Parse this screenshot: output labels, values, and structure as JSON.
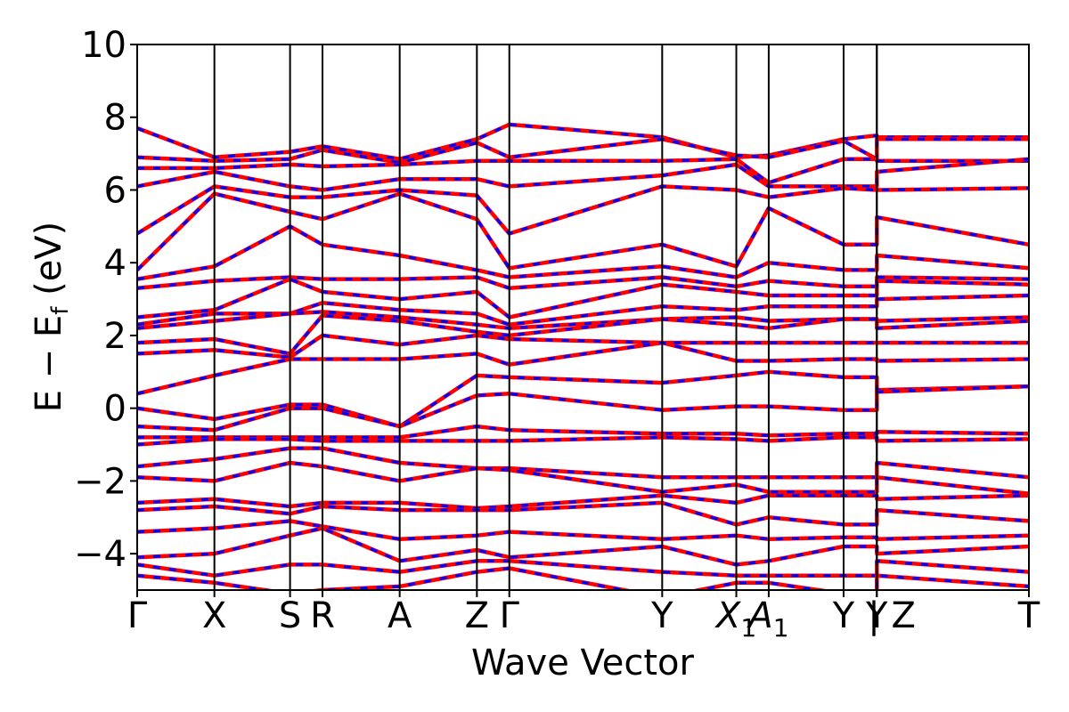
{
  "chart_data": {
    "type": "line",
    "xlabel": "Wave Vector",
    "ylabel_parts": {
      "main": "E − E",
      "sub": "f",
      "unit": " (eV)"
    },
    "ylim": [
      -5,
      10
    ],
    "yticks": [
      -4,
      -2,
      0,
      2,
      4,
      6,
      8,
      10
    ],
    "ytick_labels": [
      "−4",
      "−2",
      "0",
      "2",
      "4",
      "6",
      "8",
      "10"
    ],
    "kpoint_labels": [
      "Γ",
      "X",
      "S",
      "R",
      "A",
      "Z",
      "Γ",
      "Y",
      "X",
      "A",
      "Y",
      "Y",
      "| Z",
      "T"
    ],
    "kpoint_subscripts": [
      "",
      "",
      "",
      "",
      "",
      "",
      "",
      "",
      "1",
      "1",
      "",
      "",
      "",
      ""
    ],
    "kpoints": [
      0,
      1.0,
      1.98,
      2.4,
      3.4,
      4.4,
      4.82,
      6.8,
      7.76,
      8.18,
      9.15,
      9.58,
      9.58,
      11.55
    ],
    "legend": "none",
    "grid": false,
    "colors": {
      "spin_up": "#ff0000",
      "spin_down": "#0000ff",
      "kpath_lines": "#000000"
    },
    "series": [
      {
        "values": [
          7.7,
          6.9,
          7.05,
          7.2,
          6.85,
          7.4,
          7.8,
          7.45,
          6.9,
          6.95,
          7.4,
          7.5,
          7.45,
          7.45
        ]
      },
      {
        "values": [
          6.9,
          6.8,
          6.85,
          7.1,
          6.75,
          7.3,
          6.9,
          7.4,
          6.95,
          6.9,
          7.35,
          6.85,
          7.4,
          7.4
        ]
      },
      {
        "values": [
          6.6,
          6.6,
          6.7,
          6.65,
          6.7,
          6.8,
          6.8,
          6.8,
          6.85,
          6.2,
          6.85,
          6.85,
          6.8,
          6.8
        ]
      },
      {
        "values": [
          6.1,
          6.5,
          6.1,
          6.0,
          6.3,
          6.3,
          6.1,
          6.4,
          6.7,
          6.1,
          6.1,
          6.1,
          6.5,
          6.85
        ]
      },
      {
        "values": [
          4.8,
          6.1,
          5.8,
          5.8,
          6.0,
          5.85,
          4.8,
          6.1,
          6.0,
          5.8,
          6.05,
          6.0,
          6.0,
          6.05
        ]
      },
      {
        "values": [
          3.8,
          5.9,
          5.4,
          5.2,
          5.9,
          5.2,
          3.85,
          4.5,
          3.9,
          5.5,
          4.5,
          4.5,
          5.25,
          4.5
        ]
      },
      {
        "values": [
          3.55,
          3.9,
          5.0,
          4.5,
          4.2,
          3.8,
          3.6,
          3.9,
          3.6,
          4.0,
          3.8,
          3.8,
          4.2,
          3.85
        ]
      },
      {
        "values": [
          3.3,
          3.5,
          3.6,
          3.55,
          3.55,
          3.6,
          3.3,
          3.6,
          3.35,
          3.5,
          3.35,
          3.35,
          3.6,
          3.55
        ]
      },
      {
        "values": [
          2.5,
          2.7,
          3.55,
          3.2,
          3.0,
          3.2,
          2.5,
          3.4,
          3.2,
          3.1,
          3.1,
          3.1,
          3.5,
          3.4
        ]
      },
      {
        "values": [
          2.3,
          2.6,
          2.6,
          2.9,
          2.7,
          2.6,
          2.3,
          2.8,
          2.7,
          2.8,
          2.8,
          2.8,
          3.0,
          3.1
        ]
      },
      {
        "values": [
          2.2,
          2.4,
          2.6,
          2.65,
          2.5,
          2.3,
          2.2,
          2.45,
          2.5,
          2.4,
          2.45,
          2.45,
          2.4,
          2.5
        ]
      },
      {
        "values": [
          1.8,
          1.9,
          1.5,
          2.55,
          2.4,
          2.1,
          2.0,
          2.45,
          2.3,
          2.2,
          2.45,
          2.45,
          2.2,
          2.4
        ]
      },
      {
        "values": [
          1.5,
          1.6,
          1.4,
          2.0,
          1.75,
          2.0,
          1.9,
          1.8,
          1.8,
          1.8,
          1.8,
          1.8,
          1.8,
          1.8
        ]
      },
      {
        "values": [
          0.4,
          0.9,
          1.35,
          1.35,
          1.35,
          1.5,
          1.2,
          1.8,
          1.3,
          1.3,
          1.35,
          1.35,
          1.3,
          1.35
        ]
      },
      {
        "values": [
          0.0,
          -0.3,
          0.1,
          0.1,
          -0.5,
          0.9,
          0.85,
          0.7,
          0.9,
          1.0,
          0.85,
          0.85,
          0.5,
          0.6
        ]
      },
      {
        "values": [
          -0.5,
          -0.6,
          0.0,
          0.0,
          -0.5,
          0.35,
          0.4,
          -0.05,
          0.05,
          0.05,
          -0.05,
          -0.05,
          0.45,
          0.6
        ]
      },
      {
        "values": [
          -0.8,
          -0.8,
          -0.8,
          -0.8,
          -0.8,
          -0.5,
          -0.6,
          -0.7,
          -0.7,
          -0.75,
          -0.7,
          -0.7,
          -0.65,
          -0.7
        ]
      },
      {
        "values": [
          -1.0,
          -0.85,
          -0.85,
          -0.9,
          -0.9,
          -0.9,
          -0.9,
          -0.8,
          -0.85,
          -0.9,
          -0.8,
          -0.8,
          -0.9,
          -0.85
        ]
      },
      {
        "values": [
          -1.6,
          -1.4,
          -1.1,
          -1.1,
          -1.5,
          -1.65,
          -1.65,
          -1.9,
          -1.9,
          -1.9,
          -1.9,
          -1.9,
          -1.5,
          -1.9
        ]
      },
      {
        "values": [
          -1.9,
          -2.0,
          -1.5,
          -1.6,
          -2.0,
          -1.65,
          -1.7,
          -2.3,
          -2.1,
          -2.3,
          -2.3,
          -2.3,
          -1.9,
          -2.35
        ]
      },
      {
        "values": [
          -2.6,
          -2.5,
          -2.7,
          -2.6,
          -2.6,
          -2.75,
          -2.7,
          -2.4,
          -2.6,
          -2.4,
          -2.4,
          -2.4,
          -2.5,
          -2.4
        ]
      },
      {
        "values": [
          -2.8,
          -2.7,
          -2.9,
          -2.7,
          -2.8,
          -2.8,
          -2.8,
          -2.6,
          -3.2,
          -3.0,
          -3.2,
          -3.2,
          -2.8,
          -3.1
        ]
      },
      {
        "values": [
          -3.4,
          -3.3,
          -3.1,
          -3.25,
          -3.6,
          -3.5,
          -3.4,
          -3.6,
          -3.5,
          -3.6,
          -3.55,
          -3.55,
          -3.6,
          -3.5
        ]
      },
      {
        "values": [
          -4.1,
          -4.0,
          -3.5,
          -3.3,
          -4.2,
          -3.9,
          -4.1,
          -3.8,
          -4.3,
          -4.2,
          -3.8,
          -3.8,
          -4.0,
          -3.8
        ]
      },
      {
        "values": [
          -4.3,
          -4.6,
          -4.3,
          -4.3,
          -4.5,
          -4.2,
          -4.2,
          -4.5,
          -4.6,
          -4.6,
          -4.6,
          -4.6,
          -4.2,
          -4.5
        ]
      },
      {
        "values": [
          -4.6,
          -4.8,
          -5.1,
          -5.0,
          -4.9,
          -4.5,
          -4.4,
          -5.2,
          -4.8,
          -4.8,
          -5.1,
          -5.1,
          -4.6,
          -4.9
        ]
      }
    ]
  }
}
